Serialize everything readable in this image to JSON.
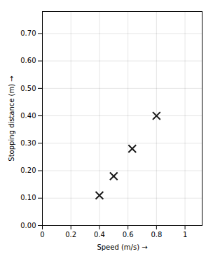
{
  "chart_data": {
    "type": "scatter",
    "x": [
      0.4,
      0.5,
      0.63,
      0.8
    ],
    "values": [
      0.11,
      0.18,
      0.28,
      0.4
    ],
    "xlabel": "Speed (m/s)",
    "ylabel": "Stopping distance (m)",
    "xlim": [
      0,
      1.12
    ],
    "ylim": [
      0,
      0.78
    ],
    "xticks": [
      0,
      0.2,
      0.4,
      0.6,
      0.8,
      1
    ],
    "yticks": [
      {
        "value": 0,
        "label": "0.00"
      },
      {
        "value": 0.1,
        "label": "0.10"
      },
      {
        "value": 0.2,
        "label": "0.20"
      },
      {
        "value": 0.3,
        "label": "0.30"
      },
      {
        "value": 0.4,
        "label": "0.40"
      },
      {
        "value": 0.5,
        "label": "0.50"
      },
      {
        "value": 0.6,
        "label": "0.60"
      },
      {
        "value": 0.7,
        "label": "0.70"
      }
    ],
    "marker": "x",
    "color": "#1a1a1a",
    "grid": true
  }
}
